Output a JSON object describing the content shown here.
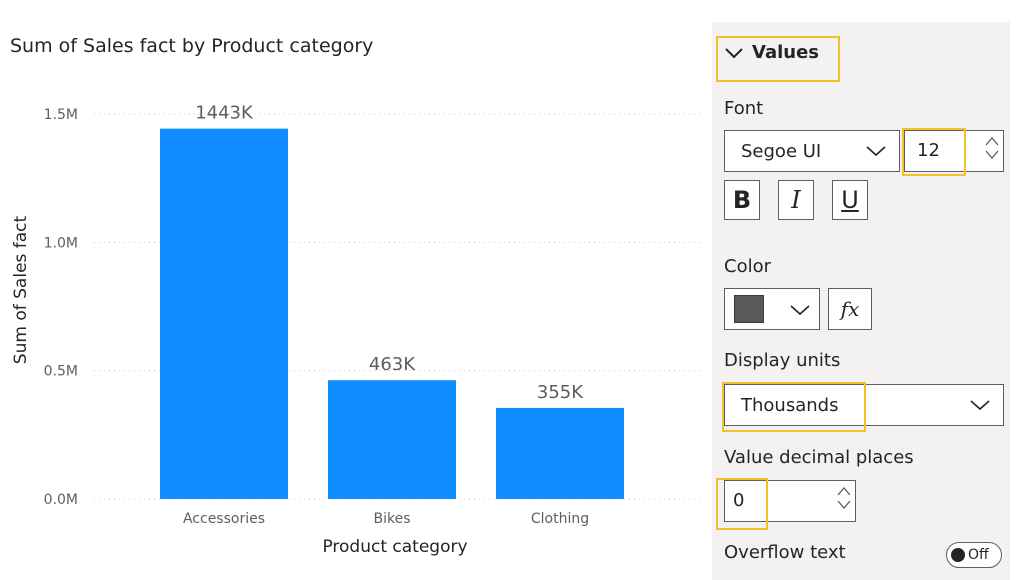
{
  "chart_data": {
    "type": "bar",
    "title": "Sum of Sales fact by Product category",
    "xlabel": "Product category",
    "ylabel": "Sum of Sales fact",
    "categories": [
      "Accessories",
      "Bikes",
      "Clothing"
    ],
    "values": [
      1443000,
      463000,
      355000
    ],
    "data_labels": [
      "1443K",
      "463K",
      "355K"
    ],
    "ylim": [
      0,
      1500000
    ],
    "y_ticks": [
      0,
      500000,
      1000000,
      1500000
    ],
    "y_tick_labels": [
      "0.0M",
      "0.5M",
      "1.0M",
      "1.5M"
    ],
    "grid": true,
    "bar_color": "#118dff"
  },
  "format_pane": {
    "section_title": "Values",
    "font_label": "Font",
    "font_family": "Segoe UI",
    "font_size": "12",
    "bold_glyph": "B",
    "italic_glyph": "I",
    "underline_glyph": "U",
    "color_label": "Color",
    "color_swatch": "#595959",
    "fx_label": "fx",
    "display_units_label": "Display units",
    "display_units_value": "Thousands",
    "decimal_places_label": "Value decimal places",
    "decimal_places_value": "0",
    "overflow_label": "Overflow text",
    "overflow_state": "Off"
  },
  "colors": {
    "highlight": "#f2c12e",
    "pane_background": "#f3f2f1"
  }
}
